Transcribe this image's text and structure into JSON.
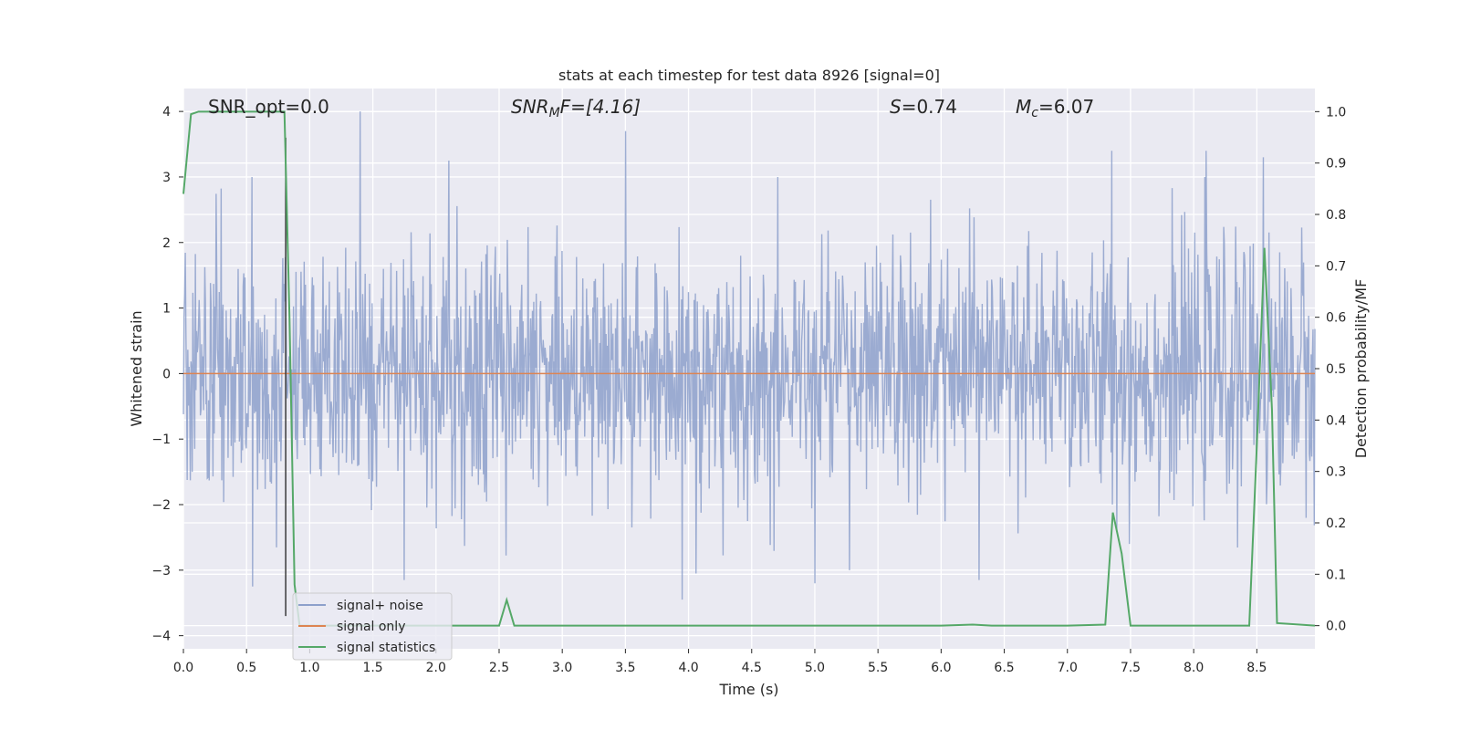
{
  "chart_data": {
    "type": "line",
    "title": "stats at each timestep for test data 8926 [signal=0]",
    "xlabel": "Time (s)",
    "ylabel": "Whitened strain",
    "y2label": "Detection probability/MF",
    "xlim": [
      0.0,
      8.96
    ],
    "ylim": [
      -4.2,
      4.35
    ],
    "y2lim": [
      -0.045,
      1.045
    ],
    "xticks": [
      0.0,
      0.5,
      1.0,
      1.5,
      2.0,
      2.5,
      3.0,
      3.5,
      4.0,
      4.5,
      5.0,
      5.5,
      6.0,
      6.5,
      7.0,
      7.5,
      8.0,
      8.5
    ],
    "xtick_labels": [
      "0.0",
      "0.5",
      "1.0",
      "1.5",
      "2.0",
      "2.5",
      "3.0",
      "3.5",
      "4.0",
      "4.5",
      "5.0",
      "5.5",
      "6.0",
      "6.5",
      "7.0",
      "7.5",
      "8.0",
      "8.5"
    ],
    "yticks": [
      -4,
      -3,
      -2,
      -1,
      0,
      1,
      2,
      3,
      4
    ],
    "ytick_labels": [
      "−4",
      "−3",
      "−2",
      "−1",
      "0",
      "1",
      "2",
      "3",
      "4"
    ],
    "y2ticks": [
      0.0,
      0.1,
      0.2,
      0.3,
      0.4,
      0.5,
      0.6,
      0.7,
      0.8,
      0.9,
      1.0
    ],
    "y2tick_labels": [
      "0.0",
      "0.1",
      "0.2",
      "0.3",
      "0.4",
      "0.5",
      "0.6",
      "0.7",
      "0.8",
      "0.9",
      "1.0"
    ],
    "grid": true,
    "legend_position": "lower-left",
    "annotations": {
      "snr_opt": "SNR_opt=0.0",
      "snr_mf_main": "SNR",
      "snr_mf_sub": "M",
      "snr_mf_rest": "F=[4.16]",
      "s_var": "S",
      "s_rest": "=0.74",
      "mc_main": "M",
      "mc_sub": "c",
      "mc_rest": "=6.07"
    },
    "vline_x": 0.81,
    "series": [
      {
        "name": "signal+ noise",
        "color": "#8da0cb",
        "axis": "left",
        "description": "whitened noise, approximately Gaussian with std ~1, range ~[-3.5, 4.0]",
        "n_points": 1800,
        "std": 0.95,
        "peaks": [
          [
            1.4,
            4.0
          ],
          [
            3.5,
            3.7
          ],
          [
            7.35,
            3.4
          ],
          [
            8.55,
            3.3
          ],
          [
            2.1,
            3.25
          ],
          [
            8.1,
            3.4
          ]
        ],
        "troughs": [
          [
            3.95,
            -3.45
          ],
          [
            0.55,
            -3.25
          ],
          [
            5.0,
            -3.2
          ],
          [
            6.3,
            -3.15
          ],
          [
            1.75,
            -3.15
          ]
        ]
      },
      {
        "name": "signal only",
        "color": "#dd8452",
        "axis": "left",
        "x": [
          0.0,
          8.96
        ],
        "y": [
          0.0,
          0.0
        ]
      },
      {
        "name": "signal statistics",
        "color": "#55a868",
        "axis": "right",
        "x": [
          0.0,
          0.06,
          0.12,
          0.2,
          0.3,
          0.5,
          0.7,
          0.8,
          0.84,
          0.88,
          0.92,
          1.0,
          1.5,
          2.0,
          2.5,
          2.56,
          2.62,
          3.0,
          4.0,
          5.0,
          6.0,
          6.25,
          6.4,
          7.0,
          7.3,
          7.36,
          7.43,
          7.5,
          8.0,
          8.44,
          8.5,
          8.56,
          8.62,
          8.66,
          8.96
        ],
        "y": [
          0.84,
          0.995,
          1.0,
          1.0,
          1.0,
          1.0,
          1.0,
          1.0,
          0.6,
          0.08,
          0.0,
          0.0,
          0.0,
          0.0,
          0.0,
          0.05,
          0.0,
          0.0,
          0.0,
          0.0,
          0.0,
          0.002,
          0.0,
          0.0,
          0.002,
          0.22,
          0.14,
          0.0,
          0.0,
          0.0,
          0.35,
          0.735,
          0.42,
          0.005,
          0.0
        ]
      }
    ]
  }
}
